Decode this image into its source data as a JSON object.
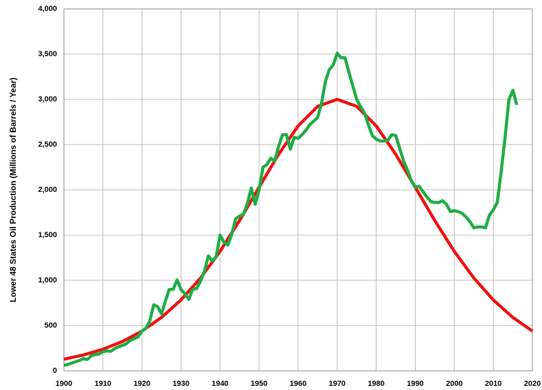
{
  "chart_data": {
    "type": "line",
    "ylabel": "Lower 48 States Oil Production (Millions of Barrels / Year)",
    "xlim": [
      1900,
      2020
    ],
    "xticks": [
      1900,
      1910,
      1920,
      1930,
      1940,
      1950,
      1960,
      1970,
      1980,
      1990,
      2000,
      2010,
      2020
    ],
    "ylim": [
      0,
      4000
    ],
    "yticks": [
      0,
      500,
      {
        "value": 1000,
        "label": "1,000"
      },
      {
        "value": 1500,
        "label": "1,500"
      },
      {
        "value": 2000,
        "label": "2,000"
      },
      {
        "value": 2500,
        "label": "2,500"
      },
      {
        "value": 3000,
        "label": "3,000"
      },
      {
        "value": 3500,
        "label": "3,500"
      },
      {
        "value": 4000,
        "label": "4,000"
      }
    ],
    "grid": true,
    "series": [
      {
        "color": "#ee1111",
        "x": [
          1900,
          1905,
          1910,
          1915,
          1920,
          1925,
          1930,
          1935,
          1940,
          1945,
          1950,
          1955,
          1960,
          1965,
          1970,
          1975,
          1980,
          1985,
          1990,
          1995,
          2000,
          2005,
          2010,
          2015,
          2020
        ],
        "values": [
          128,
          175,
          238,
          324,
          439,
          590,
          783,
          1026,
          1320,
          1661,
          2029,
          2393,
          2707,
          2923,
          3000,
          2923,
          2707,
          2393,
          2029,
          1661,
          1320,
          1026,
          783,
          590,
          439
        ]
      },
      {
        "color": "#1fad45",
        "x": [
          1900,
          1901,
          1902,
          1903,
          1904,
          1905,
          1906,
          1907,
          1908,
          1909,
          1910,
          1911,
          1912,
          1913,
          1914,
          1915,
          1916,
          1917,
          1918,
          1919,
          1920,
          1921,
          1922,
          1923,
          1924,
          1925,
          1926,
          1927,
          1928,
          1929,
          1930,
          1931,
          1932,
          1933,
          1934,
          1935,
          1936,
          1937,
          1938,
          1939,
          1940,
          1941,
          1942,
          1943,
          1944,
          1945,
          1946,
          1947,
          1948,
          1949,
          1950,
          1951,
          1952,
          1953,
          1954,
          1955,
          1956,
          1957,
          1958,
          1959,
          1960,
          1961,
          1962,
          1963,
          1964,
          1965,
          1966,
          1967,
          1968,
          1969,
          1970,
          1971,
          1972,
          1973,
          1974,
          1975,
          1976,
          1977,
          1978,
          1979,
          1980,
          1981,
          1982,
          1983,
          1984,
          1985,
          1986,
          1987,
          1988,
          1989,
          1990,
          1991,
          1992,
          1993,
          1994,
          1995,
          1996,
          1997,
          1998,
          1999,
          2000,
          2001,
          2002,
          2003,
          2004,
          2005,
          2006,
          2007,
          2008,
          2009,
          2010,
          2011,
          2012,
          2013,
          2014,
          2015,
          2016
        ],
        "values": [
          60,
          70,
          85,
          100,
          115,
          135,
          125,
          165,
          180,
          185,
          210,
          220,
          215,
          245,
          265,
          280,
          300,
          335,
          355,
          375,
          440,
          470,
          550,
          730,
          710,
          630,
          770,
          900,
          900,
          1005,
          900,
          850,
          790,
          900,
          910,
          990,
          1100,
          1270,
          1215,
          1260,
          1500,
          1420,
          1390,
          1510,
          1680,
          1710,
          1730,
          1850,
          2020,
          1840,
          2000,
          2250,
          2280,
          2350,
          2320,
          2480,
          2610,
          2610,
          2450,
          2580,
          2570,
          2610,
          2660,
          2720,
          2760,
          2800,
          2960,
          3200,
          3330,
          3380,
          3510,
          3460,
          3460,
          3300,
          3150,
          3000,
          2920,
          2850,
          2720,
          2600,
          2560,
          2540,
          2540,
          2550,
          2610,
          2600,
          2460,
          2320,
          2220,
          2100,
          2030,
          2040,
          1980,
          1920,
          1870,
          1860,
          1860,
          1880,
          1840,
          1760,
          1770,
          1760,
          1740,
          1700,
          1650,
          1580,
          1590,
          1590,
          1580,
          1720,
          1780,
          1860,
          2200,
          2580,
          3000,
          3100,
          2940
        ]
      }
    ]
  }
}
